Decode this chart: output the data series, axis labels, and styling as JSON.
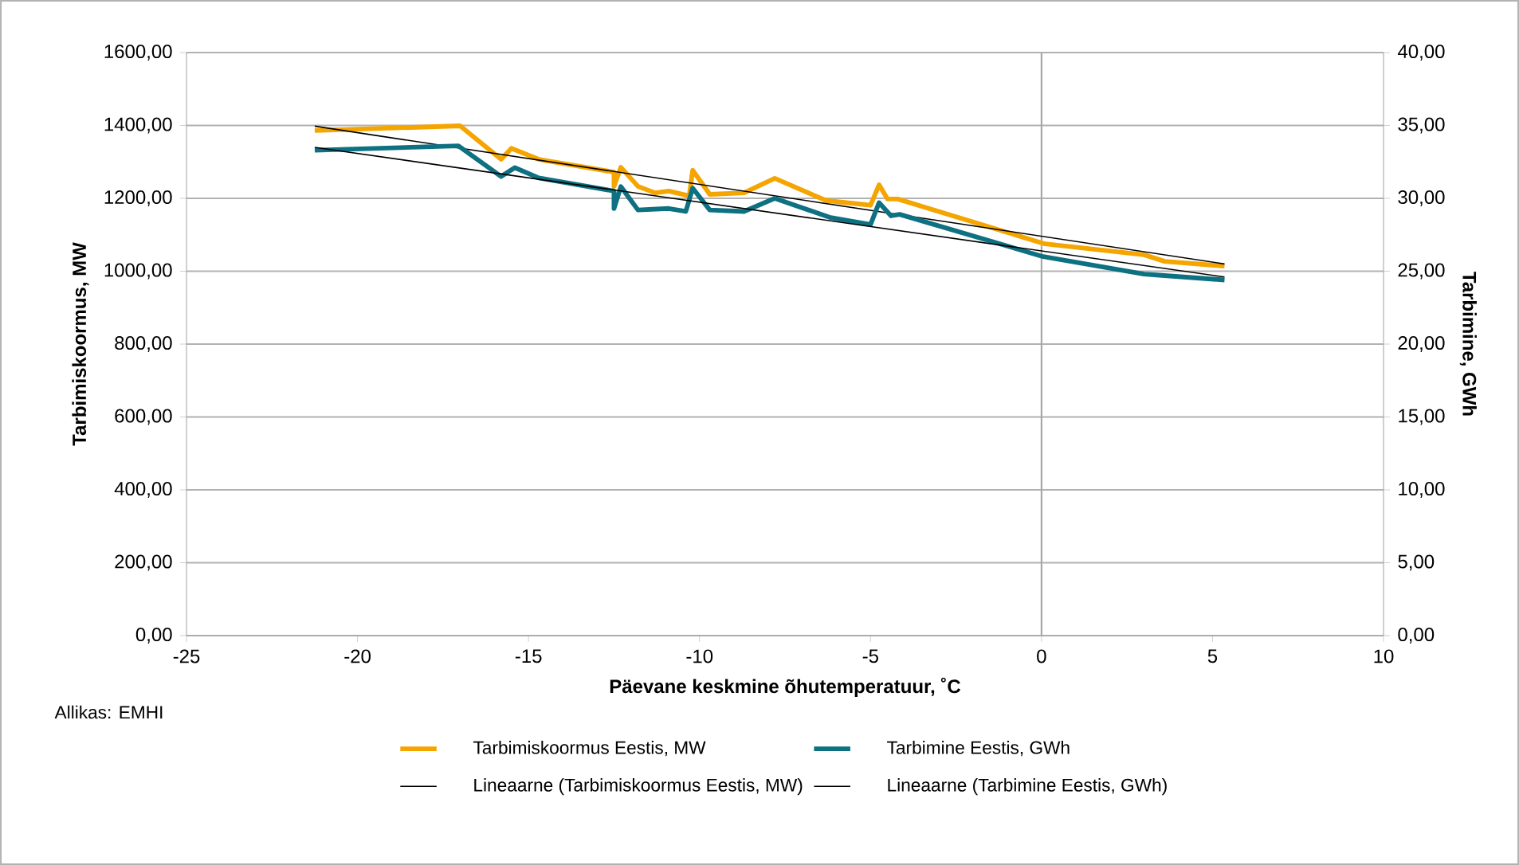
{
  "chart_data": {
    "type": "line",
    "xlabel": "Päevane keskmine õhutemperatuur, ˚C",
    "ylabel": "Tarbimiskoormus, MW",
    "y2label": "Tarbimine, GWh",
    "annotations": [
      "Allikas: EMHI"
    ],
    "xlim": [
      -25,
      10
    ],
    "xticks": [
      -25,
      -20,
      -15,
      -10,
      -5,
      0,
      5,
      10
    ],
    "ylim": [
      0,
      1600
    ],
    "yticks": [
      {
        "value": 0,
        "label": "0,00"
      },
      {
        "value": 200,
        "label": "200,00"
      },
      {
        "value": 400,
        "label": "400,00"
      },
      {
        "value": 600,
        "label": "600,00"
      },
      {
        "value": 800,
        "label": "800,00"
      },
      {
        "value": 1000,
        "label": "1000,00"
      },
      {
        "value": 1200,
        "label": "1200,00"
      },
      {
        "value": 1400,
        "label": "1400,00"
      },
      {
        "value": 1600,
        "label": "1600,00"
      }
    ],
    "y2lim": [
      0,
      40
    ],
    "y2ticks": [
      {
        "value": 0,
        "label": "0,00"
      },
      {
        "value": 5,
        "label": "5,00"
      },
      {
        "value": 10,
        "label": "10,00"
      },
      {
        "value": 15,
        "label": "15,00"
      },
      {
        "value": 20,
        "label": "20,00"
      },
      {
        "value": 25,
        "label": "25,00"
      },
      {
        "value": 30,
        "label": "30,00"
      },
      {
        "value": 35,
        "label": "35,00"
      },
      {
        "value": 40,
        "label": "40,00"
      }
    ],
    "grid": "y",
    "legend": "bottom",
    "ref_lines": [
      {
        "axis": "x",
        "value": 0,
        "color": "#a6a6a6"
      }
    ],
    "series": [
      {
        "name": "Tarbimiskoormus Eestis, MW",
        "color": "#f5a500",
        "x": [
          -21.25,
          -17.0,
          -15.8,
          -15.5,
          -14.7,
          -12.5,
          -12.5,
          -12.3,
          -11.8,
          -11.3,
          -10.9,
          -10.3,
          -10.2,
          -9.7,
          -8.7,
          -7.8,
          -6.3,
          -5.0,
          -4.75,
          -4.5,
          -4.2,
          0.1,
          3.0,
          3.6,
          5.35
        ],
        "values": [
          1386,
          1399,
          1307,
          1337,
          1307,
          1272,
          1233,
          1285,
          1233,
          1215,
          1220,
          1207,
          1277,
          1211,
          1215,
          1255,
          1194,
          1181,
          1237,
          1198,
          1198,
          1075,
          1045,
          1027,
          1014
        ]
      },
      {
        "name": "Tarbimine Eestis, GWh",
        "color": "#0e7181",
        "axis": "y2",
        "x": [
          -21.25,
          -17.05,
          -15.8,
          -15.4,
          -14.7,
          -12.5,
          -12.5,
          -12.3,
          -11.8,
          -10.9,
          -10.4,
          -10.2,
          -9.7,
          -8.7,
          -7.8,
          -6.2,
          -5.0,
          -4.75,
          -4.4,
          -4.15,
          0.05,
          3.0,
          3.6,
          5.35
        ],
        "values": [
          33.3,
          33.6,
          31.5,
          32.1,
          31.4,
          30.5,
          29.3,
          30.8,
          29.2,
          29.3,
          29.1,
          30.7,
          29.2,
          29.1,
          30.0,
          28.7,
          28.2,
          29.7,
          28.8,
          28.9,
          26.0,
          24.8,
          24.7,
          24.4
        ]
      },
      {
        "name": "Lineaarne (Tarbimiskoormus Eestis, MW)",
        "type": "line",
        "color": "#000000",
        "x": [
          -21.25,
          5.35
        ],
        "values": [
          1398,
          1020
        ]
      },
      {
        "name": "Lineaarne (Tarbimine Eestis, GWh)",
        "type": "line",
        "color": "#000000",
        "axis": "y2",
        "x": [
          -21.25,
          5.35
        ],
        "values": [
          33.5,
          24.6
        ]
      }
    ]
  }
}
